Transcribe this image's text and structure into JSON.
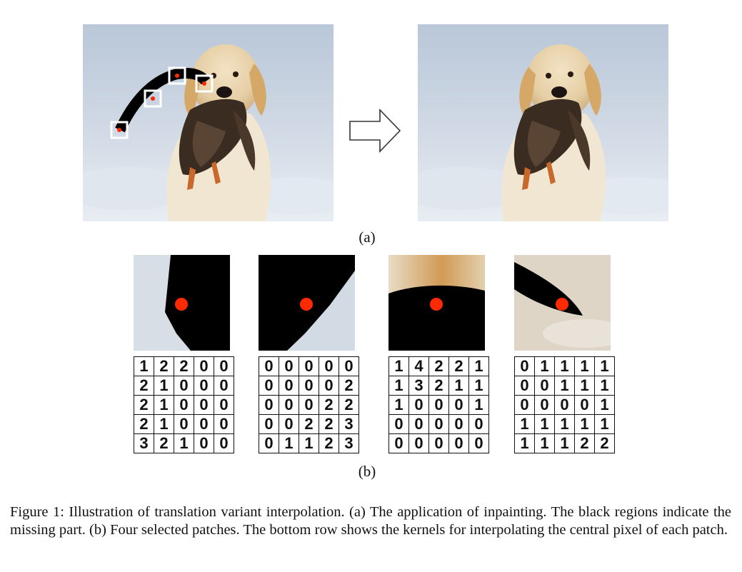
{
  "figure": {
    "label_a": "(a)",
    "label_b": "(b)",
    "caption": "Figure 1: Illustration of translation variant interpolation. (a) The application of inpainting. The black regions indicate the missing part. (b) Four selected patches. The bottom row shows the kernels for interpolating the central pixel of each patch."
  },
  "images": {
    "left": "dog-with-duck-masked-photo",
    "right": "dog-with-duck-inpainted-photo",
    "arrow": "right-arrow-icon"
  },
  "colors": {
    "mask": "#000000",
    "center_dot": "#ff2a00",
    "patch_box": "#ffffff"
  },
  "kernels": [
    {
      "rows": [
        [
          "1",
          "2",
          "2",
          "0",
          "0"
        ],
        [
          "2",
          "1",
          "0",
          "0",
          "0"
        ],
        [
          "2",
          "1",
          "0",
          "0",
          "0"
        ],
        [
          "2",
          "1",
          "0",
          "0",
          "0"
        ],
        [
          "3",
          "2",
          "1",
          "0",
          "0"
        ]
      ]
    },
    {
      "rows": [
        [
          "0",
          "0",
          "0",
          "0",
          "0"
        ],
        [
          "0",
          "0",
          "0",
          "0",
          "2"
        ],
        [
          "0",
          "0",
          "0",
          "2",
          "2"
        ],
        [
          "0",
          "0",
          "2",
          "2",
          "3"
        ],
        [
          "0",
          "1",
          "1",
          "2",
          "3"
        ]
      ]
    },
    {
      "rows": [
        [
          "1",
          "4",
          "2",
          "2",
          "1"
        ],
        [
          "1",
          "3",
          "2",
          "1",
          "1"
        ],
        [
          "1",
          "0",
          "0",
          "0",
          "1"
        ],
        [
          "0",
          "0",
          "0",
          "0",
          "0"
        ],
        [
          "0",
          "0",
          "0",
          "0",
          "0"
        ]
      ]
    },
    {
      "rows": [
        [
          "0",
          "1",
          "1",
          "1",
          "1"
        ],
        [
          "0",
          "0",
          "1",
          "1",
          "1"
        ],
        [
          "0",
          "0",
          "0",
          "0",
          "1"
        ],
        [
          "1",
          "1",
          "1",
          "1",
          "1"
        ],
        [
          "1",
          "1",
          "1",
          "2",
          "2"
        ]
      ]
    }
  ]
}
